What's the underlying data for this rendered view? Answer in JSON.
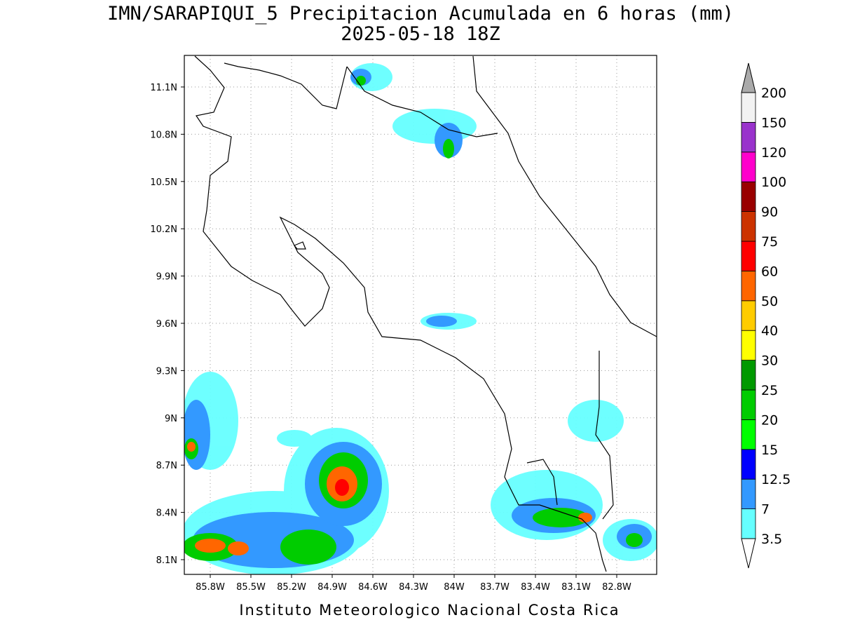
{
  "title": "IMN/SARAPIQUI_5 Precipitacion Acumulada en 6 horas (mm)",
  "subtitle": "2025-05-18 18Z",
  "lat_labels": [
    "8.1N",
    "8.4N",
    "8.7N",
    "9N",
    "9.3N",
    "9.6N",
    "9.9N",
    "10.2N",
    "10.5N",
    "10.8N",
    "11.1N"
  ],
  "lon_labels": [
    "85.8W",
    "85.5W",
    "85.2W",
    "84.9W",
    "84.6W",
    "84.3W",
    "84W",
    "83.7W",
    "83.4W",
    "83.1W",
    "82.8W"
  ],
  "colorbar": {
    "levels": [
      3.5,
      7,
      12.5,
      15,
      20,
      25,
      30,
      40,
      50,
      60,
      75,
      90,
      100,
      120,
      150,
      200
    ],
    "colors": [
      "#66ffff",
      "#3399ff",
      "#0000ff",
      "#00ff00",
      "#00cc00",
      "#009900",
      "#ffff00",
      "#ffcc00",
      "#ff6600",
      "#ff0000",
      "#cc3300",
      "#990000",
      "#ff00cc",
      "#9933cc",
      "#f2f2f2"
    ],
    "under_color": "#ffffff",
    "over_color": "#aaaaaa"
  },
  "footer": "Instituto Meteorologico Nacional Costa Rica"
}
